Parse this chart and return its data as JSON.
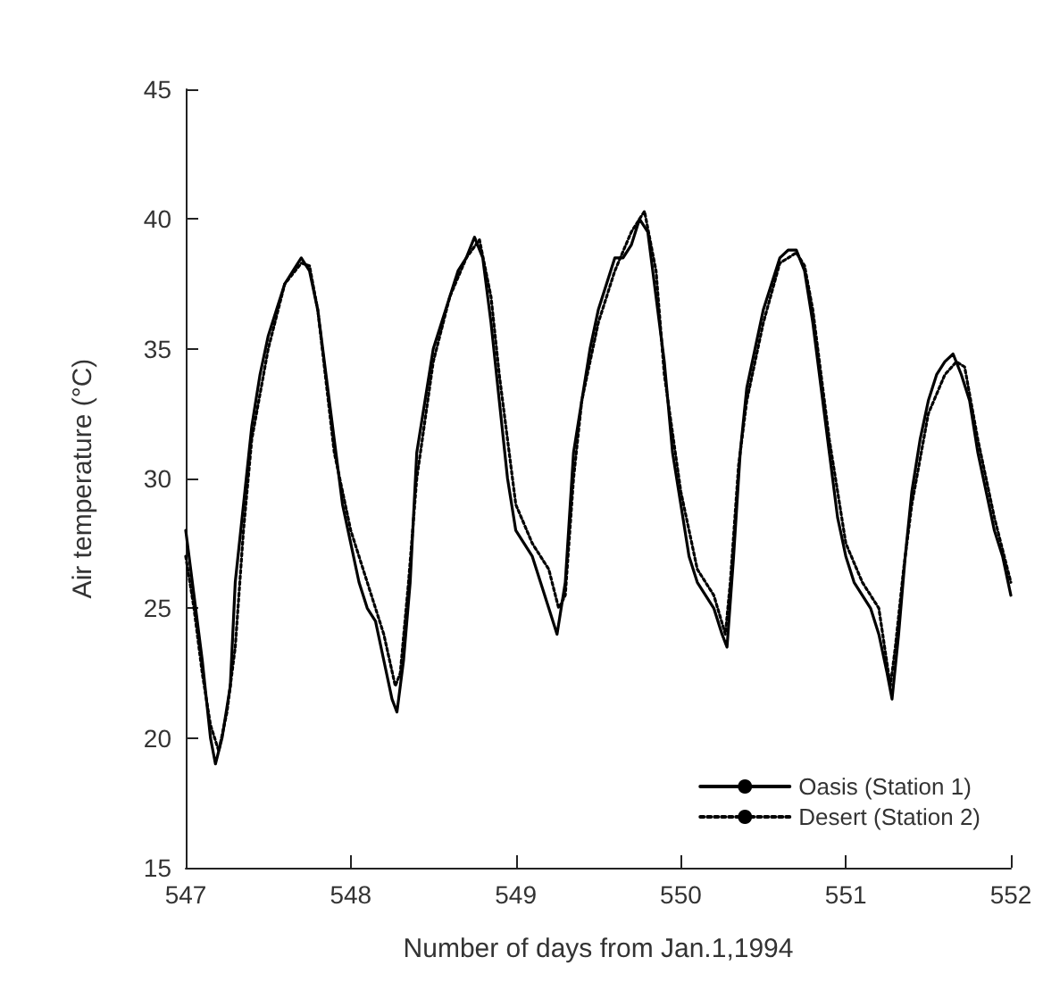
{
  "chart_data": {
    "type": "line",
    "xlabel": "Number of days from Jan.1,1994",
    "ylabel": "Air temperature (°C)",
    "xlim": [
      547,
      552
    ],
    "xticks": [
      547,
      548,
      549,
      550,
      551,
      552
    ],
    "ylim": [
      15,
      45
    ],
    "yticks": [
      15,
      20,
      25,
      30,
      35,
      40,
      45
    ],
    "grid": false,
    "legend": "bottom right",
    "marker": "none",
    "series": [
      {
        "name": "Oasis (Station 1)",
        "color": "#000000",
        "line_style": "solid",
        "x": [
          547.0,
          547.05,
          547.1,
          547.15,
          547.18,
          547.22,
          547.27,
          547.3,
          547.35,
          547.4,
          547.45,
          547.5,
          547.55,
          547.6,
          547.65,
          547.7,
          547.75,
          547.8,
          547.85,
          547.9,
          547.95,
          548.0,
          548.05,
          548.1,
          548.15,
          548.2,
          548.25,
          548.28,
          548.32,
          548.36,
          548.4,
          548.45,
          548.5,
          548.55,
          548.6,
          548.65,
          548.7,
          548.75,
          548.8,
          548.85,
          548.9,
          548.95,
          549.0,
          549.05,
          549.1,
          549.15,
          549.2,
          549.25,
          549.3,
          549.35,
          549.4,
          549.45,
          549.5,
          549.55,
          549.6,
          549.65,
          549.7,
          549.75,
          549.8,
          549.85,
          549.9,
          549.95,
          550.0,
          550.05,
          550.1,
          550.15,
          550.2,
          550.25,
          550.28,
          550.32,
          550.36,
          550.4,
          550.45,
          550.5,
          550.55,
          550.6,
          550.65,
          550.7,
          550.75,
          550.8,
          550.85,
          550.9,
          550.95,
          551.0,
          551.05,
          551.1,
          551.15,
          551.2,
          551.25,
          551.28,
          551.32,
          551.36,
          551.4,
          551.45,
          551.5,
          551.55,
          551.6,
          551.65,
          551.7,
          551.75,
          551.8,
          551.85,
          551.9,
          551.95,
          552.0
        ],
        "values": [
          28,
          25.5,
          23,
          20,
          19,
          20,
          22,
          26,
          29,
          32,
          34,
          35.5,
          36.5,
          37.5,
          38,
          38.5,
          38,
          36.5,
          34,
          31.5,
          29,
          27.5,
          26,
          25,
          24.5,
          23,
          21.5,
          21,
          23,
          26,
          31,
          33,
          35,
          36,
          37,
          38,
          38.5,
          39.3,
          38.5,
          36,
          33,
          30,
          28,
          27.5,
          27,
          26,
          25,
          24,
          26,
          31,
          33,
          35,
          36.5,
          37.5,
          38.5,
          38.5,
          39,
          40,
          39.5,
          37,
          34.5,
          31,
          29,
          27,
          26,
          25.5,
          25,
          24,
          23.5,
          27,
          31,
          33.5,
          35,
          36.5,
          37.5,
          38.5,
          38.8,
          38.8,
          38,
          36,
          33.5,
          31,
          28.5,
          27,
          26,
          25.5,
          25,
          24,
          22.5,
          21.5,
          24,
          27,
          29.5,
          31.5,
          33,
          34,
          34.5,
          34.8,
          34,
          33,
          31,
          29.5,
          28,
          27,
          25.5
        ]
      },
      {
        "name": "Desert (Station 2)",
        "color": "#000000",
        "line_style": "dotted",
        "x": [
          547.0,
          547.05,
          547.1,
          547.15,
          547.2,
          547.25,
          547.3,
          547.35,
          547.4,
          547.5,
          547.6,
          547.7,
          547.75,
          547.8,
          547.9,
          548.0,
          548.1,
          548.2,
          548.27,
          548.3,
          548.35,
          548.4,
          548.5,
          548.6,
          548.7,
          548.78,
          548.85,
          548.9,
          549.0,
          549.1,
          549.2,
          549.26,
          549.3,
          549.35,
          549.4,
          549.5,
          549.6,
          549.7,
          549.78,
          549.85,
          549.9,
          550.0,
          550.1,
          550.2,
          550.27,
          550.3,
          550.35,
          550.4,
          550.5,
          550.6,
          550.7,
          550.75,
          550.8,
          550.9,
          551.0,
          551.1,
          551.2,
          551.27,
          551.3,
          551.35,
          551.4,
          551.5,
          551.6,
          551.67,
          551.72,
          551.8,
          551.9,
          552.0
        ],
        "values": [
          27,
          25,
          22.5,
          20.5,
          19.5,
          21,
          23.5,
          28,
          31.5,
          35,
          37.5,
          38.3,
          38.2,
          36.5,
          31,
          28,
          26,
          24,
          22,
          22.5,
          26,
          30,
          34.5,
          37,
          38.5,
          39.2,
          37,
          34,
          29,
          27.5,
          26.5,
          25,
          25.5,
          30,
          33,
          36,
          38,
          39.5,
          40.3,
          38,
          34,
          29.5,
          26.5,
          25.5,
          24,
          26,
          30.5,
          33,
          36,
          38.3,
          38.7,
          38.2,
          36.5,
          31.5,
          27.5,
          26,
          25,
          22,
          23.5,
          26.5,
          29,
          32.5,
          34,
          34.5,
          34.3,
          31.5,
          28.5,
          26
        ]
      }
    ]
  }
}
